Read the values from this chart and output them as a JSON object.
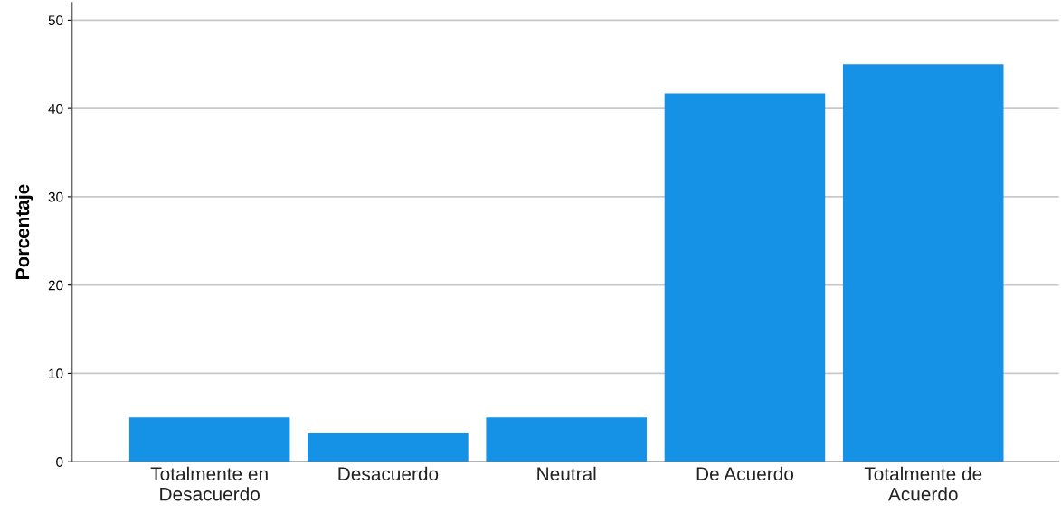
{
  "chart_data": {
    "type": "bar",
    "ylabel": "Porcentaje",
    "categories": [
      "Totalmente en\nDesacuerdo",
      "Desacuerdo",
      "Neutral",
      "De Acuerdo",
      "Totalmente de\nAcuerdo"
    ],
    "values": [
      5.0,
      3.3,
      5.0,
      41.7,
      45.0
    ],
    "color": "#1591e6",
    "ylim": [
      0,
      52
    ],
    "yticks": [
      0,
      10,
      20,
      30,
      40,
      50
    ],
    "grid": "y",
    "legend": false
  }
}
